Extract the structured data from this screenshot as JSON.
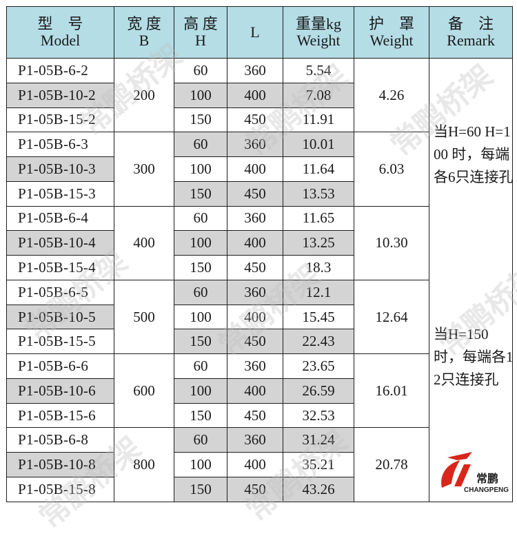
{
  "headers": [
    {
      "cn": "型　号",
      "en": "Model"
    },
    {
      "cn": "宽 度",
      "en": "B"
    },
    {
      "cn": "高 度",
      "en": "H"
    },
    {
      "cn": "",
      "en": "L"
    },
    {
      "cn": "重量kg",
      "en": "Weight"
    },
    {
      "cn": "护　罩",
      "en": "Weight"
    },
    {
      "cn": "备　注",
      "en": "Remark"
    }
  ],
  "groups": [
    {
      "width": "200",
      "guard": "4.26",
      "rows": [
        {
          "model": "P1-05B-6-2",
          "h": "60",
          "l": "360",
          "w": "5.54"
        },
        {
          "model": "P1-05B-10-2",
          "h": "100",
          "l": "400",
          "w": "7.08"
        },
        {
          "model": "P1-05B-15-2",
          "h": "150",
          "l": "450",
          "w": "11.91"
        }
      ]
    },
    {
      "width": "300",
      "guard": "6.03",
      "rows": [
        {
          "model": "P1-05B-6-3",
          "h": "60",
          "l": "360",
          "w": "10.01"
        },
        {
          "model": "P1-05B-10-3",
          "h": "100",
          "l": "400",
          "w": "11.64"
        },
        {
          "model": "P1-05B-15-3",
          "h": "150",
          "l": "450",
          "w": "13.53"
        }
      ]
    },
    {
      "width": "400",
      "guard": "10.30",
      "rows": [
        {
          "model": "P1-05B-6-4",
          "h": "60",
          "l": "360",
          "w": "11.65"
        },
        {
          "model": "P1-05B-10-4",
          "h": "100",
          "l": "400",
          "w": "13.25"
        },
        {
          "model": "P1-05B-15-4",
          "h": "150",
          "l": "450",
          "w": "18.3"
        }
      ]
    },
    {
      "width": "500",
      "guard": "12.64",
      "rows": [
        {
          "model": "P1-05B-6-5",
          "h": "60",
          "l": "360",
          "w": "12.1"
        },
        {
          "model": "P1-05B-10-5",
          "h": "100",
          "l": "400",
          "w": "15.45"
        },
        {
          "model": "P1-05B-15-5",
          "h": "150",
          "l": "450",
          "w": "22.43"
        }
      ]
    },
    {
      "width": "600",
      "guard": "16.01",
      "rows": [
        {
          "model": "P1-05B-6-6",
          "h": "60",
          "l": "360",
          "w": "23.65"
        },
        {
          "model": "P1-05B-10-6",
          "h": "100",
          "l": "400",
          "w": "26.59"
        },
        {
          "model": "P1-05B-15-6",
          "h": "150",
          "l": "450",
          "w": "32.53"
        }
      ]
    },
    {
      "width": "800",
      "guard": "20.78",
      "rows": [
        {
          "model": "P1-05B-6-8",
          "h": "60",
          "l": "360",
          "w": "31.24"
        },
        {
          "model": "P1-05B-10-8",
          "h": "100",
          "l": "400",
          "w": "35.21"
        },
        {
          "model": "P1-05B-15-8",
          "h": "150",
          "l": "450",
          "w": "43.26"
        }
      ]
    }
  ],
  "remark": {
    "note_1": "当H=60 H=100 时，每端各6只连接孔",
    "note_2": "当H=150 时，每端各12只连接孔"
  },
  "logo": {
    "cn": "常鹏",
    "en": "CHANGPENG"
  },
  "watermark": "常鹏桥架",
  "colors": {
    "header_bg": "#b5dde6",
    "shaded_cell": "#d4d4d4",
    "logo_red": "#d9261c"
  }
}
